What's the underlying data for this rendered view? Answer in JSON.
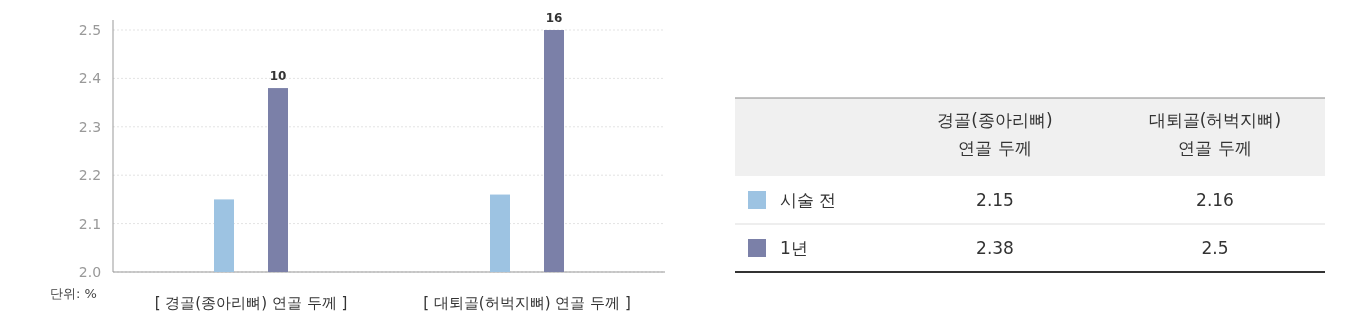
{
  "chart_data": {
    "type": "bar",
    "categories": [
      "[ 경골(종아리뼈) 연골 두께 ]",
      "[ 대퇴골(허벅지뼈) 연골 두께 ]"
    ],
    "series": [
      {
        "name": "시술 전",
        "color": "#9dc3e2",
        "values": [
          2.15,
          2.16
        ]
      },
      {
        "name": "1년",
        "color": "#7b80a8",
        "values": [
          2.38,
          2.5
        ]
      }
    ],
    "ylabel": "단위: %",
    "ylim": [
      2.0,
      2.5
    ],
    "yticks": [
      {
        "value": 2.0,
        "label": "2.0"
      },
      2.1,
      2.2,
      2.3,
      2.4,
      2.5
    ],
    "grid": "y",
    "legend": "right",
    "annotations": [
      "경골(종아리뼈) 연골 두께",
      "대퇴골(허벅지뼈) 연골 두께",
      "2.15",
      "2.16",
      "2.38",
      "2.5",
      "10",
      "16"
    ]
  }
}
